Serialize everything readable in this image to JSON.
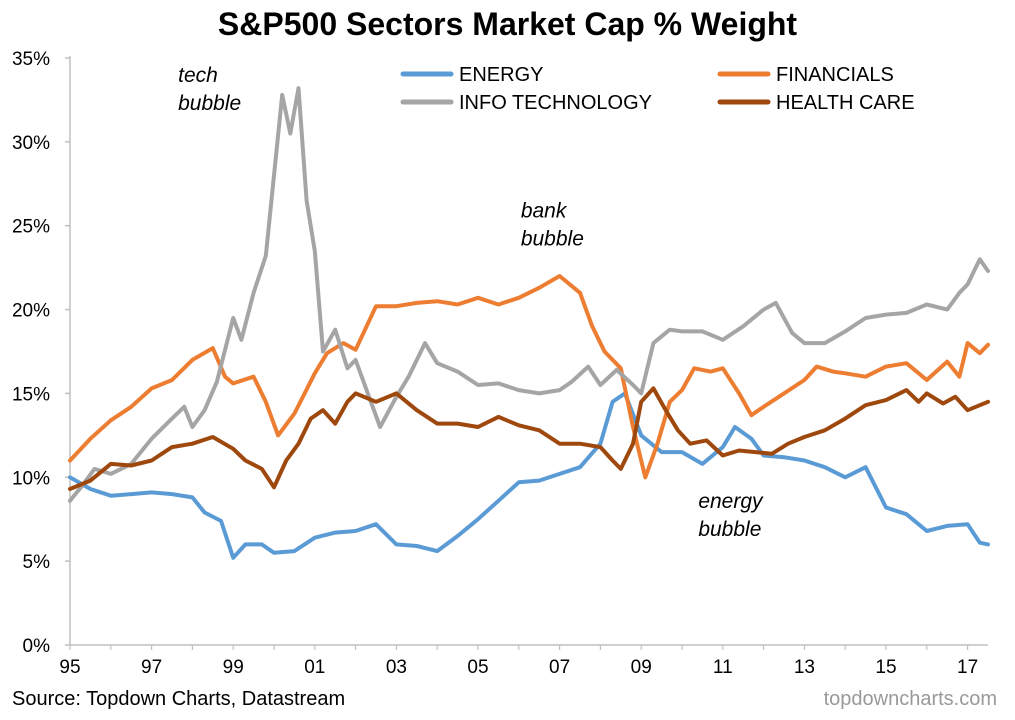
{
  "title": "S&P500 Sectors Market Cap % Weight",
  "source": "Source: Topdown Charts, Datastream",
  "brand": "topdowncharts.com",
  "colors": {
    "energy": "#5b9bd5",
    "financials": "#ed7d31",
    "info_technology": "#a5a5a5",
    "health_care": "#9e480e",
    "axis": "#bfbfbf"
  },
  "chart_data": {
    "type": "line",
    "title": "S&P500 Sectors Market Cap % Weight",
    "xlabel": "",
    "ylabel": "",
    "xlim": [
      1995,
      2017.5
    ],
    "ylim": [
      0,
      35
    ],
    "grid": false,
    "legend_position": "top",
    "x_ticks": [
      {
        "x": 1995,
        "label": "95"
      },
      {
        "x": 1997,
        "label": "97"
      },
      {
        "x": 1999,
        "label": "99"
      },
      {
        "x": 2001,
        "label": "01"
      },
      {
        "x": 2003,
        "label": "03"
      },
      {
        "x": 2005,
        "label": "05"
      },
      {
        "x": 2007,
        "label": "07"
      },
      {
        "x": 2009,
        "label": "09"
      },
      {
        "x": 2011,
        "label": "11"
      },
      {
        "x": 2013,
        "label": "13"
      },
      {
        "x": 2015,
        "label": "15"
      },
      {
        "x": 2017,
        "label": "17"
      }
    ],
    "y_ticks": [
      {
        "y": 0,
        "label": "0%"
      },
      {
        "y": 5,
        "label": "5%"
      },
      {
        "y": 10,
        "label": "10%"
      },
      {
        "y": 15,
        "label": "15%"
      },
      {
        "y": 20,
        "label": "20%"
      },
      {
        "y": 25,
        "label": "25%"
      },
      {
        "y": 30,
        "label": "30%"
      },
      {
        "y": 35,
        "label": "35%"
      }
    ],
    "series": [
      {
        "name": "ENERGY",
        "color_key": "energy",
        "points": [
          [
            1995.0,
            10.0
          ],
          [
            1995.5,
            9.3
          ],
          [
            1996.0,
            8.9
          ],
          [
            1996.5,
            9.0
          ],
          [
            1997.0,
            9.1
          ],
          [
            1997.5,
            9.0
          ],
          [
            1998.0,
            8.8
          ],
          [
            1998.3,
            7.9
          ],
          [
            1998.7,
            7.4
          ],
          [
            1999.0,
            5.2
          ],
          [
            1999.3,
            6.0
          ],
          [
            1999.7,
            6.0
          ],
          [
            2000.0,
            5.5
          ],
          [
            2000.5,
            5.6
          ],
          [
            2001.0,
            6.4
          ],
          [
            2001.5,
            6.7
          ],
          [
            2002.0,
            6.8
          ],
          [
            2002.5,
            7.2
          ],
          [
            2003.0,
            6.0
          ],
          [
            2003.5,
            5.9
          ],
          [
            2004.0,
            5.6
          ],
          [
            2004.5,
            6.5
          ],
          [
            2005.0,
            7.5
          ],
          [
            2005.5,
            8.6
          ],
          [
            2006.0,
            9.7
          ],
          [
            2006.5,
            9.8
          ],
          [
            2007.0,
            10.2
          ],
          [
            2007.5,
            10.6
          ],
          [
            2008.0,
            12.0
          ],
          [
            2008.3,
            14.5
          ],
          [
            2008.6,
            15.0
          ],
          [
            2009.0,
            12.5
          ],
          [
            2009.5,
            11.5
          ],
          [
            2010.0,
            11.5
          ],
          [
            2010.5,
            10.8
          ],
          [
            2011.0,
            11.8
          ],
          [
            2011.3,
            13.0
          ],
          [
            2011.7,
            12.3
          ],
          [
            2012.0,
            11.3
          ],
          [
            2012.5,
            11.2
          ],
          [
            2013.0,
            11.0
          ],
          [
            2013.5,
            10.6
          ],
          [
            2014.0,
            10.0
          ],
          [
            2014.5,
            10.6
          ],
          [
            2015.0,
            8.2
          ],
          [
            2015.5,
            7.8
          ],
          [
            2016.0,
            6.8
          ],
          [
            2016.5,
            7.1
          ],
          [
            2017.0,
            7.2
          ],
          [
            2017.3,
            6.1
          ],
          [
            2017.5,
            6.0
          ]
        ]
      },
      {
        "name": "FINANCIALS",
        "color_key": "financials",
        "points": [
          [
            1995.0,
            11.0
          ],
          [
            1995.5,
            12.3
          ],
          [
            1996.0,
            13.4
          ],
          [
            1996.5,
            14.2
          ],
          [
            1997.0,
            15.3
          ],
          [
            1997.5,
            15.8
          ],
          [
            1998.0,
            17.0
          ],
          [
            1998.5,
            17.7
          ],
          [
            1998.8,
            16.0
          ],
          [
            1999.0,
            15.6
          ],
          [
            1999.5,
            16.0
          ],
          [
            1999.8,
            14.5
          ],
          [
            2000.1,
            12.5
          ],
          [
            2000.5,
            13.8
          ],
          [
            2001.0,
            16.2
          ],
          [
            2001.3,
            17.4
          ],
          [
            2001.7,
            18.0
          ],
          [
            2002.0,
            17.6
          ],
          [
            2002.5,
            20.2
          ],
          [
            2003.0,
            20.2
          ],
          [
            2003.5,
            20.4
          ],
          [
            2004.0,
            20.5
          ],
          [
            2004.5,
            20.3
          ],
          [
            2005.0,
            20.7
          ],
          [
            2005.5,
            20.3
          ],
          [
            2006.0,
            20.7
          ],
          [
            2006.5,
            21.3
          ],
          [
            2007.0,
            22.0
          ],
          [
            2007.5,
            21.0
          ],
          [
            2007.8,
            19.0
          ],
          [
            2008.1,
            17.5
          ],
          [
            2008.5,
            16.5
          ],
          [
            2008.8,
            13.0
          ],
          [
            2009.1,
            10.0
          ],
          [
            2009.4,
            12.0
          ],
          [
            2009.7,
            14.5
          ],
          [
            2010.0,
            15.2
          ],
          [
            2010.3,
            16.5
          ],
          [
            2010.7,
            16.3
          ],
          [
            2011.0,
            16.5
          ],
          [
            2011.4,
            15.0
          ],
          [
            2011.7,
            13.7
          ],
          [
            2012.0,
            14.2
          ],
          [
            2012.5,
            15.0
          ],
          [
            2013.0,
            15.8
          ],
          [
            2013.3,
            16.6
          ],
          [
            2013.7,
            16.3
          ],
          [
            2014.0,
            16.2
          ],
          [
            2014.5,
            16.0
          ],
          [
            2015.0,
            16.6
          ],
          [
            2015.5,
            16.8
          ],
          [
            2016.0,
            15.8
          ],
          [
            2016.5,
            16.9
          ],
          [
            2016.8,
            16.0
          ],
          [
            2017.0,
            18.0
          ],
          [
            2017.3,
            17.4
          ],
          [
            2017.5,
            17.9
          ]
        ]
      },
      {
        "name": "INFO TECHNOLOGY",
        "color_key": "info_technology",
        "points": [
          [
            1995.0,
            8.6
          ],
          [
            1995.3,
            9.5
          ],
          [
            1995.6,
            10.5
          ],
          [
            1996.0,
            10.2
          ],
          [
            1996.5,
            10.8
          ],
          [
            1997.0,
            12.3
          ],
          [
            1997.5,
            13.5
          ],
          [
            1997.8,
            14.2
          ],
          [
            1998.0,
            13.0
          ],
          [
            1998.3,
            14.0
          ],
          [
            1998.6,
            15.7
          ],
          [
            1999.0,
            19.5
          ],
          [
            1999.2,
            18.2
          ],
          [
            1999.5,
            21.0
          ],
          [
            1999.8,
            23.2
          ],
          [
            2000.0,
            28.0
          ],
          [
            2000.2,
            32.8
          ],
          [
            2000.4,
            30.5
          ],
          [
            2000.6,
            33.2
          ],
          [
            2000.8,
            26.5
          ],
          [
            2001.0,
            23.5
          ],
          [
            2001.2,
            17.5
          ],
          [
            2001.5,
            18.8
          ],
          [
            2001.8,
            16.5
          ],
          [
            2002.0,
            17.0
          ],
          [
            2002.3,
            15.0
          ],
          [
            2002.6,
            13.0
          ],
          [
            2003.0,
            14.8
          ],
          [
            2003.3,
            16.0
          ],
          [
            2003.7,
            18.0
          ],
          [
            2004.0,
            16.8
          ],
          [
            2004.5,
            16.3
          ],
          [
            2005.0,
            15.5
          ],
          [
            2005.5,
            15.6
          ],
          [
            2006.0,
            15.2
          ],
          [
            2006.5,
            15.0
          ],
          [
            2007.0,
            15.2
          ],
          [
            2007.3,
            15.7
          ],
          [
            2007.7,
            16.6
          ],
          [
            2008.0,
            15.5
          ],
          [
            2008.4,
            16.4
          ],
          [
            2008.8,
            15.5
          ],
          [
            2009.0,
            15.0
          ],
          [
            2009.3,
            18.0
          ],
          [
            2009.7,
            18.8
          ],
          [
            2010.0,
            18.7
          ],
          [
            2010.5,
            18.7
          ],
          [
            2011.0,
            18.2
          ],
          [
            2011.5,
            19.0
          ],
          [
            2012.0,
            20.0
          ],
          [
            2012.3,
            20.4
          ],
          [
            2012.7,
            18.6
          ],
          [
            2013.0,
            18.0
          ],
          [
            2013.5,
            18.0
          ],
          [
            2014.0,
            18.7
          ],
          [
            2014.5,
            19.5
          ],
          [
            2015.0,
            19.7
          ],
          [
            2015.5,
            19.8
          ],
          [
            2016.0,
            20.3
          ],
          [
            2016.5,
            20.0
          ],
          [
            2016.8,
            21.0
          ],
          [
            2017.0,
            21.5
          ],
          [
            2017.3,
            23.0
          ],
          [
            2017.5,
            22.3
          ]
        ]
      },
      {
        "name": "HEALTH CARE",
        "color_key": "health_care",
        "points": [
          [
            1995.0,
            9.3
          ],
          [
            1995.5,
            9.8
          ],
          [
            1996.0,
            10.8
          ],
          [
            1996.5,
            10.7
          ],
          [
            1997.0,
            11.0
          ],
          [
            1997.5,
            11.8
          ],
          [
            1998.0,
            12.0
          ],
          [
            1998.5,
            12.4
          ],
          [
            1999.0,
            11.7
          ],
          [
            1999.3,
            11.0
          ],
          [
            1999.7,
            10.5
          ],
          [
            2000.0,
            9.4
          ],
          [
            2000.3,
            11.0
          ],
          [
            2000.6,
            12.0
          ],
          [
            2000.9,
            13.5
          ],
          [
            2001.2,
            14.0
          ],
          [
            2001.5,
            13.2
          ],
          [
            2001.8,
            14.5
          ],
          [
            2002.0,
            15.0
          ],
          [
            2002.5,
            14.5
          ],
          [
            2003.0,
            15.0
          ],
          [
            2003.5,
            14.0
          ],
          [
            2004.0,
            13.2
          ],
          [
            2004.5,
            13.2
          ],
          [
            2005.0,
            13.0
          ],
          [
            2005.5,
            13.6
          ],
          [
            2006.0,
            13.1
          ],
          [
            2006.5,
            12.8
          ],
          [
            2007.0,
            12.0
          ],
          [
            2007.5,
            12.0
          ],
          [
            2008.0,
            11.8
          ],
          [
            2008.3,
            11.0
          ],
          [
            2008.5,
            10.5
          ],
          [
            2008.8,
            12.0
          ],
          [
            2009.0,
            14.5
          ],
          [
            2009.3,
            15.3
          ],
          [
            2009.6,
            14.0
          ],
          [
            2009.9,
            12.8
          ],
          [
            2010.2,
            12.0
          ],
          [
            2010.6,
            12.2
          ],
          [
            2011.0,
            11.3
          ],
          [
            2011.4,
            11.6
          ],
          [
            2011.8,
            11.5
          ],
          [
            2012.2,
            11.4
          ],
          [
            2012.6,
            12.0
          ],
          [
            2013.0,
            12.4
          ],
          [
            2013.5,
            12.8
          ],
          [
            2014.0,
            13.5
          ],
          [
            2014.5,
            14.3
          ],
          [
            2015.0,
            14.6
          ],
          [
            2015.5,
            15.2
          ],
          [
            2015.8,
            14.5
          ],
          [
            2016.0,
            15.0
          ],
          [
            2016.4,
            14.4
          ],
          [
            2016.7,
            14.8
          ],
          [
            2017.0,
            14.0
          ],
          [
            2017.3,
            14.3
          ],
          [
            2017.5,
            14.5
          ]
        ]
      }
    ],
    "annotations": [
      {
        "lines": [
          "tech",
          "bubble"
        ],
        "x": 1997.65,
        "y": 34.0
      },
      {
        "lines": [
          "bank",
          "bubble"
        ],
        "x": 2006.05,
        "y": 25.9
      },
      {
        "lines": [
          "energy",
          "bubble"
        ],
        "x": 2010.4,
        "y": 8.6
      }
    ]
  },
  "legend": [
    {
      "label": "ENERGY",
      "color_key": "energy"
    },
    {
      "label": "FINANCIALS",
      "color_key": "financials"
    },
    {
      "label": "INFO TECHNOLOGY",
      "color_key": "info_technology"
    },
    {
      "label": "HEALTH CARE",
      "color_key": "health_care"
    }
  ]
}
